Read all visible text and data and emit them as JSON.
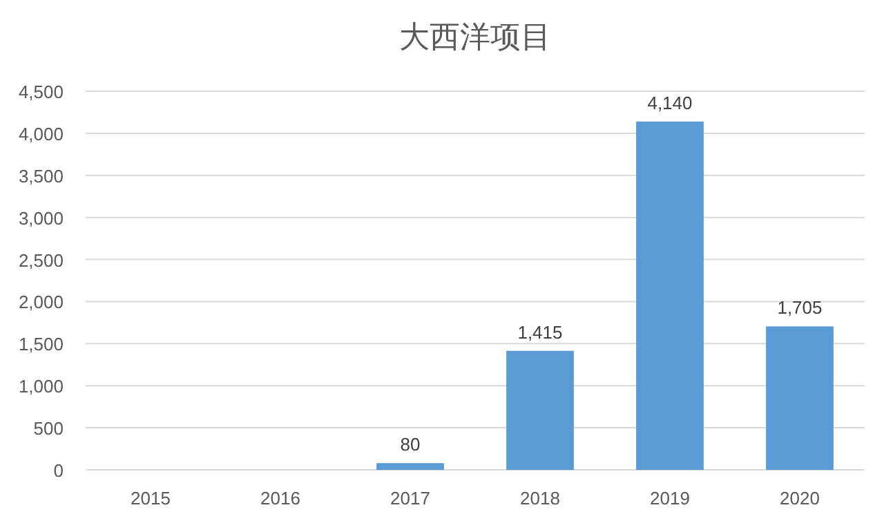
{
  "chart_data": {
    "type": "bar",
    "title": "大西洋项目",
    "categories": [
      "2015",
      "2016",
      "2017",
      "2018",
      "2019",
      "2020"
    ],
    "values": [
      0,
      0,
      80,
      1415,
      4140,
      1705
    ],
    "value_labels": [
      null,
      null,
      "80",
      "1,415",
      "4,140",
      "1,705"
    ],
    "color": "#5b9bd5",
    "ylim": [
      0,
      4500
    ],
    "yticks": [
      {
        "value": 0,
        "label": "0"
      },
      {
        "value": 500,
        "label": "500"
      },
      {
        "value": 1000,
        "label": "1,000"
      },
      {
        "value": 1500,
        "label": "1,500"
      },
      {
        "value": 2000,
        "label": "2,000"
      },
      {
        "value": 2500,
        "label": "2,500"
      },
      {
        "value": 3000,
        "label": "3,000"
      },
      {
        "value": 3500,
        "label": "3,500"
      },
      {
        "value": 4000,
        "label": "4,000"
      },
      {
        "value": 4500,
        "label": "4,500"
      }
    ],
    "grid": "y"
  }
}
